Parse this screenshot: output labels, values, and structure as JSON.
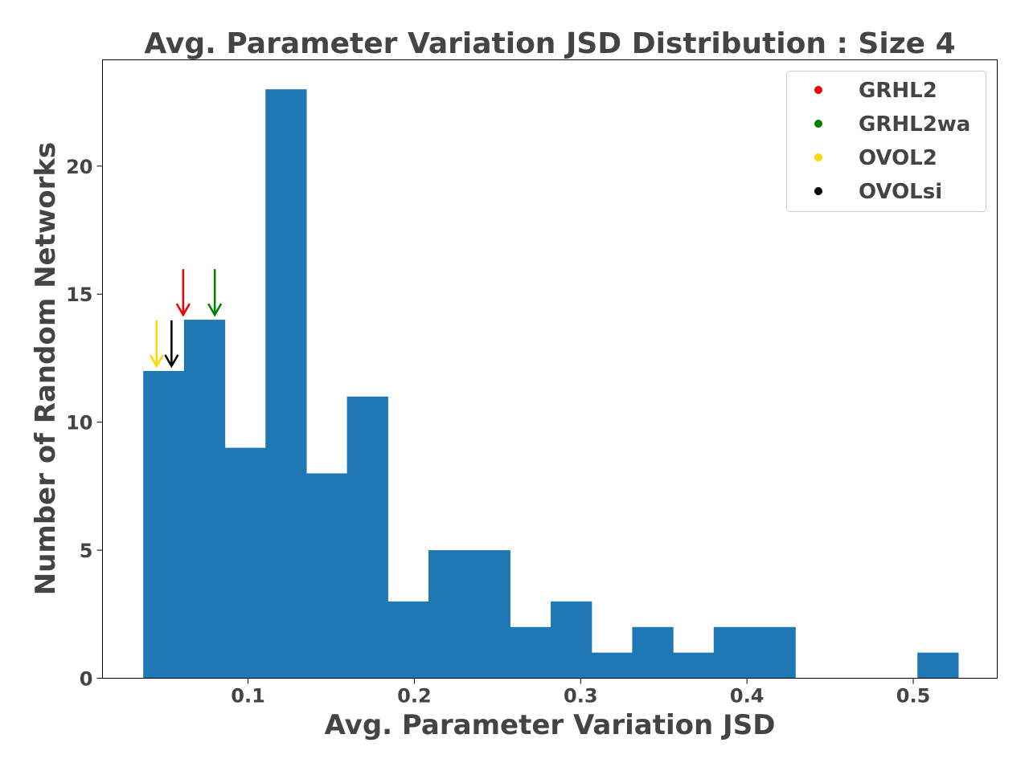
{
  "chart_data": {
    "type": "bar",
    "title": "Avg. Parameter Variation JSD Distribution : Size 4",
    "xlabel": "Avg. Parameter Variation JSD",
    "ylabel": "Number of Random Networks",
    "xlim": [
      0.0125,
      0.5505
    ],
    "ylim": [
      0,
      24.15
    ],
    "xticks": [
      0.1,
      0.2,
      0.3,
      0.4,
      0.5
    ],
    "xtick_labels": [
      "0.1",
      "0.2",
      "0.3",
      "0.4",
      "0.5"
    ],
    "yticks": [
      0,
      5,
      10,
      15,
      20
    ],
    "ytick_labels": [
      "0",
      "5",
      "10",
      "15",
      "20"
    ],
    "bin_edges": [
      0.037,
      0.0615,
      0.086,
      0.1105,
      0.135,
      0.1595,
      0.184,
      0.2085,
      0.233,
      0.2575,
      0.282,
      0.3065,
      0.331,
      0.3555,
      0.38,
      0.4045,
      0.429,
      0.4535,
      0.478,
      0.5025,
      0.527
    ],
    "values": [
      12,
      14,
      9,
      23,
      8,
      11,
      3,
      5,
      5,
      2,
      3,
      1,
      2,
      1,
      2,
      2,
      0,
      0,
      0,
      1
    ],
    "bar_color": "#1f77b4",
    "grid": false,
    "legend_position": "top-right",
    "markers": [
      {
        "name": "GRHL2",
        "x": 0.061,
        "y": 14,
        "color": "#ee0000"
      },
      {
        "name": "GRHL2wa",
        "x": 0.08,
        "y": 14,
        "color": "#008000"
      },
      {
        "name": "OVOL2",
        "x": 0.045,
        "y": 12,
        "color": "#ffd700"
      },
      {
        "name": "OVOLsi",
        "x": 0.054,
        "y": 12,
        "color": "#000000"
      }
    ]
  }
}
